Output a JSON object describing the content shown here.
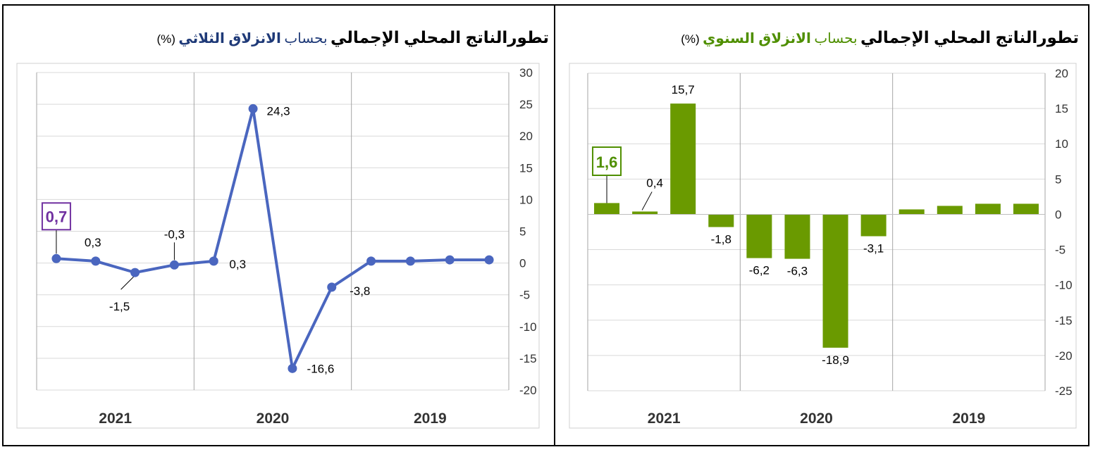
{
  "left_chart": {
    "title_bold": "تطورالناتج المحلي الإجمالي",
    "title_mid": "بحساب",
    "title_hl": "الانزلاق الثلاثي",
    "title_pct": "(%)",
    "accent_color": "#4a66bf",
    "title_color": "#1f3a78",
    "highlight_color": "#7030a0"
  },
  "right_chart": {
    "title_bold": "تطورالناتج المحلي الإجمالي",
    "title_mid": "بحساب",
    "title_hl": "الانزلاق السنوي",
    "title_pct": "(%)",
    "accent_color": "#6a9a00",
    "title_color": "#4f8f00",
    "highlight_color": "#4f8f00"
  },
  "chart_data": [
    {
      "type": "line",
      "series": [
        {
          "values": [
            0.7,
            0.3,
            -1.5,
            -0.3,
            0.3,
            24.3,
            -16.6,
            -3.8,
            0.3,
            0.3,
            0.5,
            0.5
          ]
        }
      ],
      "data_labels": [
        {
          "index": 0,
          "text": "0,7",
          "boxed": true
        },
        {
          "index": 1,
          "text": "0,3"
        },
        {
          "index": 2,
          "text": "-1,5"
        },
        {
          "index": 3,
          "text": "-0,3"
        },
        {
          "index": 4,
          "text": "0,3"
        },
        {
          "index": 5,
          "text": "24,3"
        },
        {
          "index": 6,
          "text": "-16,6"
        },
        {
          "index": 7,
          "text": "-3,8"
        }
      ],
      "year_labels": [
        "2021",
        "2020",
        "2019"
      ],
      "ylim": [
        -20,
        30
      ],
      "yticks": [
        -20,
        -15,
        -10,
        -5,
        0,
        5,
        10,
        15,
        20,
        25,
        30
      ],
      "y_axis_side": "right",
      "grid": true
    },
    {
      "type": "bar",
      "series": [
        {
          "values": [
            1.6,
            0.4,
            15.7,
            -1.8,
            -6.2,
            -6.3,
            -18.9,
            -3.1,
            0.7,
            1.2,
            1.5,
            1.5
          ]
        }
      ],
      "data_labels": [
        {
          "index": 0,
          "text": "1,6",
          "boxed": true
        },
        {
          "index": 1,
          "text": "0,4"
        },
        {
          "index": 2,
          "text": "15,7"
        },
        {
          "index": 3,
          "text": "-1,8"
        },
        {
          "index": 4,
          "text": "-6,2"
        },
        {
          "index": 5,
          "text": "-6,3"
        },
        {
          "index": 6,
          "text": "-18,9"
        },
        {
          "index": 7,
          "text": "-3,1"
        }
      ],
      "year_labels": [
        "2021",
        "2020",
        "2019"
      ],
      "ylim": [
        -25,
        20
      ],
      "yticks": [
        -25,
        -20,
        -15,
        -10,
        -5,
        0,
        5,
        10,
        15,
        20
      ],
      "y_axis_side": "right",
      "grid": true
    }
  ]
}
